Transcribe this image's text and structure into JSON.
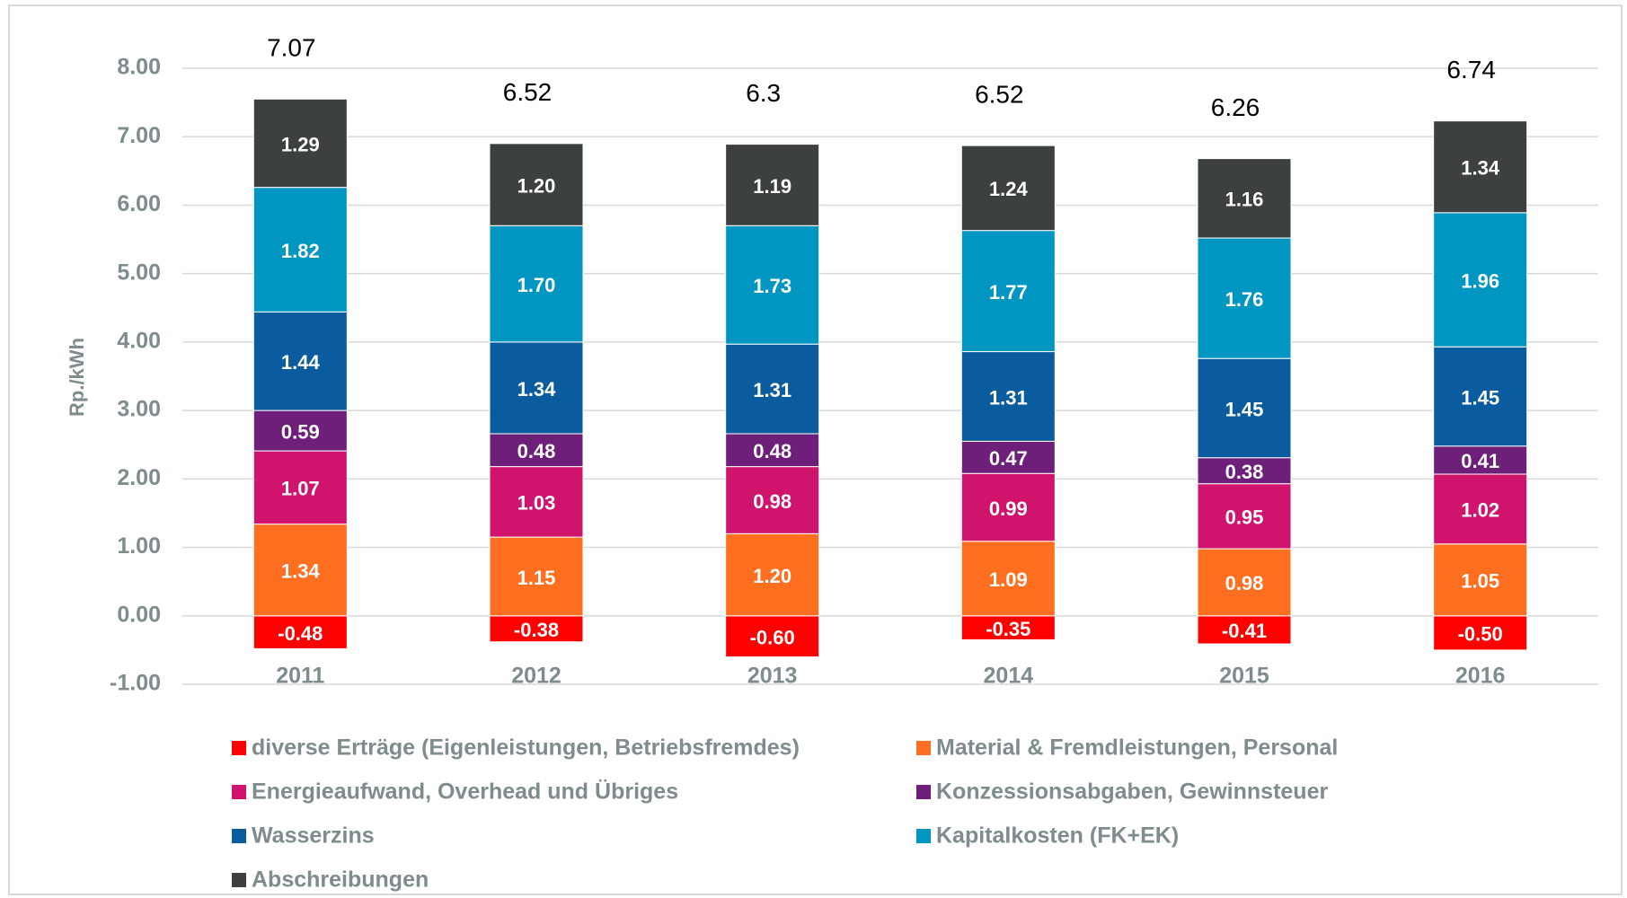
{
  "chart_data": {
    "type": "stacked_bar",
    "y_axis_label": "Rp./kWh",
    "categories": [
      "2011",
      "2012",
      "2013",
      "2014",
      "2015",
      "2016"
    ],
    "series": [
      {
        "name": "diverse Erträge (Eigenleistungen, Betriebsfremdes)",
        "color": "#ff0000",
        "values": [
          -0.48,
          -0.38,
          -0.6,
          -0.35,
          -0.41,
          -0.5
        ],
        "value_labels": [
          "-0.48",
          "-0.38",
          "-0.60",
          "-0.35",
          "-0.41",
          "-0.50"
        ]
      },
      {
        "name": "Material & Fremdleistungen, Personal",
        "color": "#ff6f1f",
        "values": [
          1.34,
          1.15,
          1.2,
          1.09,
          0.98,
          1.05
        ],
        "value_labels": [
          "1.34",
          "1.15",
          "1.20",
          "1.09",
          "0.98",
          "1.05"
        ]
      },
      {
        "name": "Energieaufwand, Overhead und Übriges",
        "color": "#d0146d",
        "values": [
          1.07,
          1.03,
          0.98,
          0.99,
          0.95,
          1.02
        ],
        "value_labels": [
          "1.07",
          "1.03",
          "0.98",
          "0.99",
          "0.95",
          "1.02"
        ]
      },
      {
        "name": "Konzessionsabgaben, Gewinnsteuer",
        "color": "#6e1f7a",
        "values": [
          0.59,
          0.48,
          0.48,
          0.47,
          0.38,
          0.41
        ],
        "value_labels": [
          "0.59",
          "0.48",
          "0.48",
          "0.47",
          "0.38",
          "0.41"
        ]
      },
      {
        "name": "Wasserzins",
        "color": "#0b5c9e",
        "values": [
          1.44,
          1.34,
          1.31,
          1.31,
          1.45,
          1.45
        ],
        "value_labels": [
          "1.44",
          "1.34",
          "1.31",
          "1.31",
          "1.45",
          "1.45"
        ]
      },
      {
        "name": "Kapitalkosten (FK+EK)",
        "color": "#0096c2",
        "values": [
          1.82,
          1.7,
          1.73,
          1.77,
          1.76,
          1.96
        ],
        "value_labels": [
          "1.82",
          "1.70",
          "1.73",
          "1.77",
          "1.76",
          "1.96"
        ]
      },
      {
        "name": "Abschreibungen",
        "color": "#3c4040",
        "values": [
          1.29,
          1.2,
          1.19,
          1.24,
          1.16,
          1.34
        ],
        "value_labels": [
          "1.29",
          "1.20",
          "1.19",
          "1.24",
          "1.16",
          "1.34"
        ]
      }
    ],
    "totals": [
      7.07,
      6.52,
      6.3,
      6.52,
      6.26,
      6.74
    ],
    "ylim": [
      -1,
      8
    ],
    "yticks": [
      {
        "value": -1,
        "label": "-1.00"
      },
      {
        "value": 0,
        "label": "0.00"
      },
      {
        "value": 1,
        "label": "1.00"
      },
      {
        "value": 2,
        "label": "2.00"
      },
      {
        "value": 3,
        "label": "3.00"
      },
      {
        "value": 4,
        "label": "4.00"
      },
      {
        "value": 5,
        "label": "5.00"
      },
      {
        "value": 6,
        "label": "6.00"
      },
      {
        "value": 7,
        "label": "7.00"
      },
      {
        "value": 8,
        "label": "8.00"
      }
    ],
    "grid": true
  }
}
